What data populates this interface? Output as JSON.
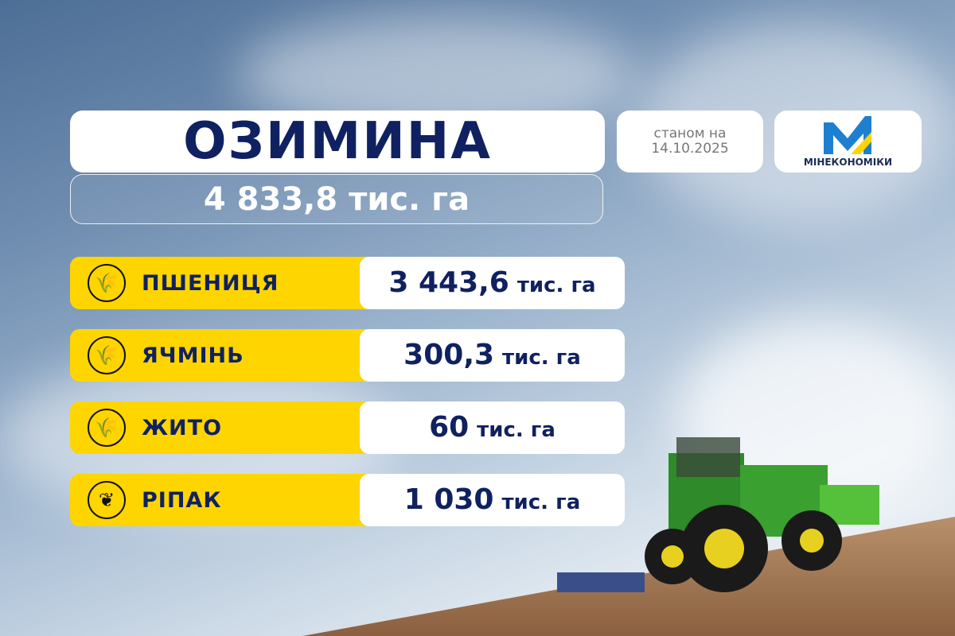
{
  "header": {
    "title": "ОЗИМИНА",
    "total": "4 833,8 тис. га"
  },
  "date": {
    "line1": "станом на",
    "line2": "14.10.2025"
  },
  "logo": {
    "text": "МІНЕКОНОМІКИ",
    "colors": {
      "blue": "#1f7fcf",
      "yellow": "#ffd500"
    }
  },
  "crops": [
    {
      "label": "ПШЕНИЦЯ",
      "value": "3 443,6",
      "unit": "тис. га",
      "icon": "wheat-icon"
    },
    {
      "label": "ЯЧМІНЬ",
      "value": "300,3",
      "unit": "тис. га",
      "icon": "barley-icon"
    },
    {
      "label": "ЖИТО",
      "value": "60",
      "unit": "тис. га",
      "icon": "rye-icon"
    },
    {
      "label": "РІПАК",
      "value": "1 030",
      "unit": "тис. га",
      "icon": "rapeseed-icon"
    }
  ],
  "colors": {
    "accent": "#ffd500",
    "text": "#0f2160"
  }
}
